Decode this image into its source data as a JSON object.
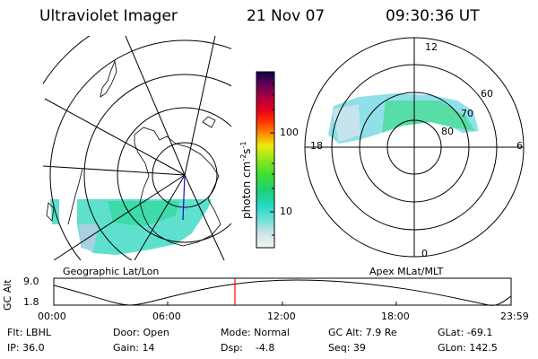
{
  "header": {
    "instrument": "Ultraviolet Imager",
    "date": "21 Nov 07",
    "time": "09:30:36 UT"
  },
  "left_panel": {
    "caption": "Geographic Lat/Lon"
  },
  "right_panel": {
    "caption": "Apex MLat/MLT",
    "mlt_labels": [
      "12",
      "18",
      "6",
      "0"
    ],
    "lat_labels": [
      "60",
      "70",
      "80"
    ]
  },
  "colorbar": {
    "unit_label": "photon cm",
    "unit_sup1": "-2",
    "unit_s": "s",
    "unit_sup2": "-1",
    "tick_labels": [
      "100",
      "10"
    ],
    "scale": "log"
  },
  "timeline": {
    "ylabel": "GC Alt",
    "ytick_top": "9.0",
    "ytick_bottom": "1.8",
    "xticks": [
      "00:00",
      "06:00",
      "12:00",
      "18:00",
      "23:59"
    ],
    "marker_color": "#ff0000"
  },
  "status": {
    "flt": "Flt: LBHL",
    "ip": "IP: 36.0",
    "door": "Door: Open",
    "gain": "Gain: 14",
    "mode": "Mode: Normal",
    "dsp": "Dsp:    -4.8",
    "gcalt": "GC Alt: 7.9 Re",
    "seq": "Seq: 39",
    "glat": "GLat: -69.1",
    "glon": "GLon: 142.5"
  }
}
